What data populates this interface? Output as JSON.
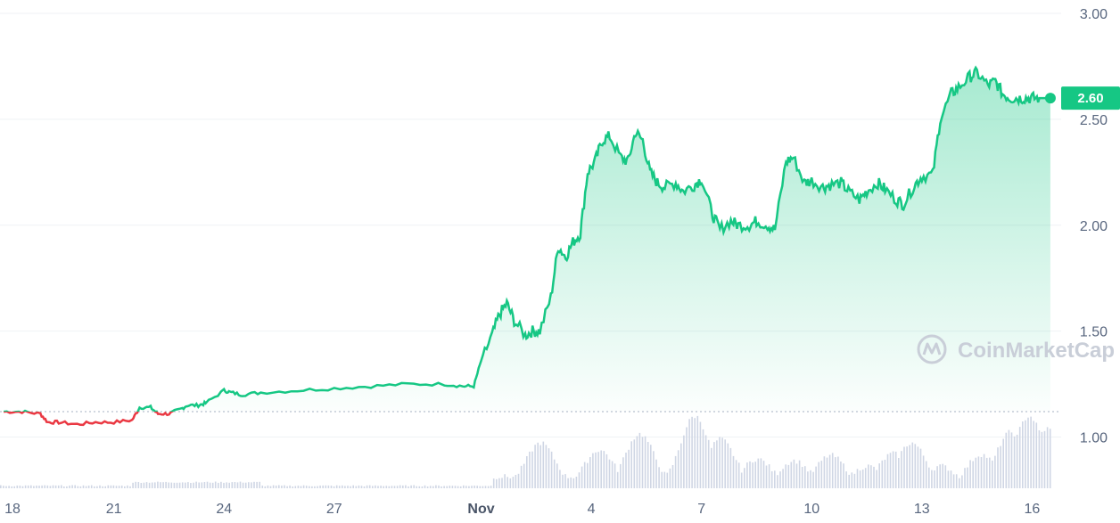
{
  "chart_data": {
    "type": "line",
    "title": "",
    "xlabel": "",
    "ylabel": "",
    "ylim": [
      0.75,
      3.0
    ],
    "y_ticks": [
      1.0,
      1.5,
      2.0,
      2.5,
      3.0
    ],
    "y_tick_labels": [
      "1.00",
      "1.50",
      "2.00",
      "2.50",
      "3.00"
    ],
    "x_ticks": [
      {
        "label": "18",
        "t": 0.0
      },
      {
        "label": "21",
        "t": 3.0
      },
      {
        "label": "24",
        "t": 6.0
      },
      {
        "label": "27",
        "t": 9.0
      },
      {
        "label": "Nov",
        "t": 13.0
      },
      {
        "label": "4",
        "t": 16.0
      },
      {
        "label": "7",
        "t": 19.0
      },
      {
        "label": "10",
        "t": 22.0
      },
      {
        "label": "13",
        "t": 25.0
      },
      {
        "label": "16",
        "t": 28.0
      }
    ],
    "baseline": 1.12,
    "current_price": "2.60",
    "colors": {
      "up": "#16c784",
      "down": "#ea3943",
      "volume": "#cfd6e4",
      "grid": "#eff2f5"
    },
    "series": [
      {
        "values_t": [
          0.0,
          0.5,
          1.0,
          1.2,
          1.5,
          2.0,
          2.5,
          3.0,
          3.5,
          3.7,
          4.0,
          4.2,
          4.5,
          4.8,
          5.0,
          5.3,
          5.5,
          6.0,
          6.2,
          6.5,
          7.0,
          8.0,
          9.0,
          10.0,
          11.0,
          12.0,
          12.5,
          12.8,
          13.0,
          13.3,
          13.5,
          13.7,
          13.9,
          14.2,
          14.4,
          14.6,
          14.9,
          15.1,
          15.3,
          15.5,
          15.7,
          15.9,
          16.1,
          16.3,
          16.5,
          16.8,
          17.0,
          17.2,
          17.4,
          17.6,
          17.8,
          18.0,
          18.3,
          18.5,
          18.8,
          19.0,
          19.3,
          19.5,
          19.8,
          20.0,
          20.3,
          20.5,
          20.8,
          21.0,
          21.3,
          21.5,
          21.8,
          22.0,
          22.3,
          22.5,
          22.8,
          23.0,
          23.3,
          23.5,
          23.8,
          24.0,
          24.3,
          24.5,
          24.8,
          25.0,
          25.3,
          25.5,
          25.8,
          26.0,
          26.3,
          26.5,
          26.8,
          27.0,
          27.2,
          27.4,
          27.6,
          27.8,
          28.0,
          28.2,
          28.5
        ],
        "values_y": [
          1.12,
          1.12,
          1.11,
          1.07,
          1.07,
          1.06,
          1.07,
          1.07,
          1.08,
          1.14,
          1.14,
          1.11,
          1.11,
          1.13,
          1.15,
          1.15,
          1.16,
          1.22,
          1.21,
          1.2,
          1.21,
          1.22,
          1.23,
          1.24,
          1.25,
          1.25,
          1.24,
          1.24,
          1.36,
          1.48,
          1.58,
          1.63,
          1.55,
          1.48,
          1.5,
          1.5,
          1.66,
          1.9,
          1.85,
          1.92,
          1.96,
          2.25,
          2.3,
          2.4,
          2.42,
          2.32,
          2.3,
          2.44,
          2.4,
          2.25,
          2.2,
          2.18,
          2.2,
          2.16,
          2.19,
          2.22,
          2.05,
          1.98,
          2.02,
          2.0,
          2.0,
          2.02,
          2.0,
          1.98,
          2.3,
          2.32,
          2.2,
          2.21,
          2.18,
          2.19,
          2.2,
          2.16,
          2.12,
          2.16,
          2.2,
          2.17,
          2.12,
          2.1,
          2.19,
          2.23,
          2.24,
          2.5,
          2.62,
          2.65,
          2.7,
          2.72,
          2.66,
          2.68,
          2.62,
          2.6,
          2.6,
          2.6,
          2.6,
          2.6,
          2.6
        ]
      }
    ]
  },
  "watermark": {
    "text": "CoinMarketCap"
  }
}
